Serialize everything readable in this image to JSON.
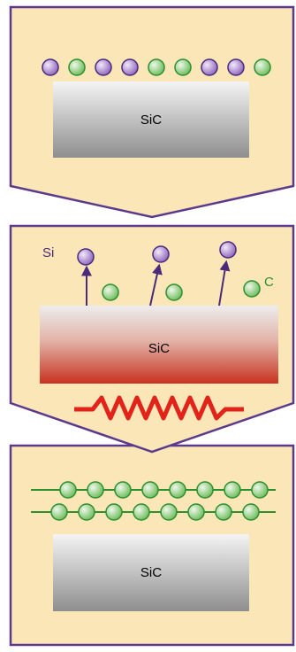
{
  "panels": [
    {
      "substrate_label": "SiC"
    },
    {
      "substrate_label": "SiC",
      "silicon_label": "Si",
      "carbon_label": "C"
    },
    {
      "substrate_label": "SiC"
    }
  ]
}
